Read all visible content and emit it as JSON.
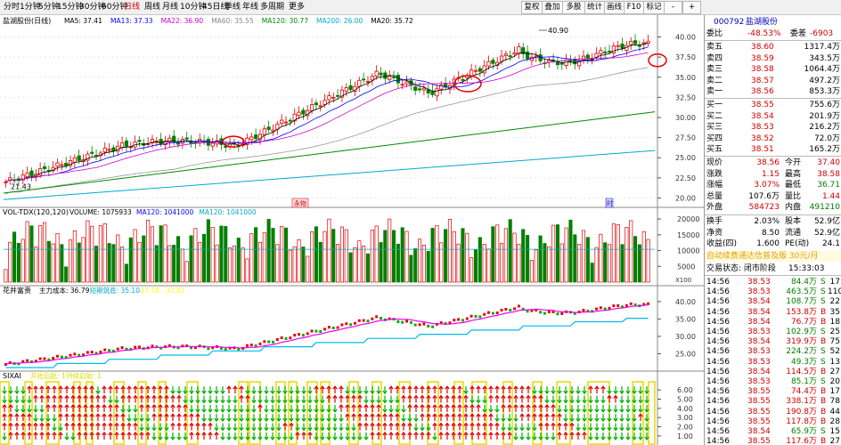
{
  "toolbar": {
    "periods": [
      "分时",
      "1分钟",
      "5分钟",
      "15分钟",
      "30分钟",
      "60分钟",
      "日线",
      "周线",
      "月线",
      "10分钟",
      "45日线",
      "季线",
      "年线",
      "多周期",
      "更多"
    ],
    "active_period": "日线",
    "buttons": [
      "复权",
      "叠加",
      "多股",
      "统计",
      "画线",
      "F10",
      "标记",
      "-",
      "+"
    ]
  },
  "main_panel": {
    "title": "盐湖股份(日线)",
    "ma_labels": [
      {
        "text": "MA5: 37.41",
        "color": "#000000"
      },
      {
        "text": "MA13: 37.33",
        "color": "#0000ff"
      },
      {
        "text": "MA22: 36.90",
        "color": "#cc00cc"
      },
      {
        "text": "MA60: 35.55",
        "color": "#888888"
      },
      {
        "text": "MA120: 30.77",
        "color": "#008800"
      },
      {
        "text": "MA200: 26.00",
        "color": "#00aacc"
      },
      {
        "text": "MA20: 35.72",
        "color": "#000000"
      }
    ],
    "y_axis": [
      "40.00",
      "37.50",
      "35.00",
      "32.50",
      "30.00",
      "27.50",
      "25.00",
      "22.50",
      "20.00"
    ],
    "high_label": "40.90",
    "low_label": "21.43",
    "flag_left": "永物",
    "flag_right": "时"
  },
  "volume_panel": {
    "title": "VOL-TDX(120,120)",
    "labels": [
      {
        "text": "VOLUME: 1075933",
        "color": "#000000"
      },
      {
        "text": "MA120: 1041000",
        "color": "#0000ff"
      },
      {
        "text": "MA120: 1041000",
        "color": "#00aacc"
      }
    ],
    "y_axis": [
      "20000",
      "15000",
      "10000",
      "5000"
    ],
    "unit": "X100"
  },
  "indicator_panel": {
    "title": "花井富贵",
    "labels": [
      {
        "text": "主力成本: 36.79",
        "color": "#000000"
      },
      {
        "text": "短期筑底: 35.10",
        "color": "#00aacc"
      },
      {
        "text": "37.78 : 37.02",
        "color": "#ffff00"
      }
    ],
    "y_axis": [
      "40.00",
      "35.00",
      "30.00",
      "25.00"
    ]
  },
  "signal_panel": {
    "title": "SIXAI",
    "labels": [
      {
        "text": "开始启航: 1",
        "color": "#dddd00"
      },
      {
        "text": "持续启航: 1",
        "color": "#dddd00"
      }
    ],
    "y_axis": [
      "6.00",
      "5.00",
      "4.00",
      "3.00",
      "2.00",
      "1.00"
    ]
  },
  "quote": {
    "code": "000792",
    "name": "盐湖股份",
    "weibi_label": "委比",
    "weibi_value": "-48.53%",
    "weicha_label": "委差",
    "weicha_value": "-6903",
    "asks": [
      {
        "label": "卖五",
        "price": "38.60",
        "vol": "1317.4万"
      },
      {
        "label": "卖四",
        "price": "38.59",
        "vol": "343.5万"
      },
      {
        "label": "卖三",
        "price": "38.58",
        "vol": "1064.4万"
      },
      {
        "label": "卖二",
        "price": "38.57",
        "vol": "497.2万"
      },
      {
        "label": "卖一",
        "price": "38.56",
        "vol": "853.3万"
      }
    ],
    "bids": [
      {
        "label": "买一",
        "price": "38.55",
        "vol": "755.6万"
      },
      {
        "label": "买二",
        "price": "38.54",
        "vol": "201.9万"
      },
      {
        "label": "买三",
        "price": "38.53",
        "vol": "216.2万"
      },
      {
        "label": "买四",
        "price": "38.52",
        "vol": "72.0万"
      },
      {
        "label": "买五",
        "price": "38.51",
        "vol": "165.2万"
      }
    ],
    "stats": [
      {
        "l1": "现价",
        "v1": "38.56",
        "c1": "red",
        "l2": "今开",
        "v2": "37.40",
        "c2": "red"
      },
      {
        "l1": "涨跌",
        "v1": "1.15",
        "c1": "red",
        "l2": "最高",
        "v2": "38.58",
        "c2": "red"
      },
      {
        "l1": "涨幅",
        "v1": "3.07%",
        "c1": "red",
        "l2": "最低",
        "v2": "36.71",
        "c2": "green"
      },
      {
        "l1": "总量",
        "v1": "107.6万",
        "c1": "black",
        "l2": "量比",
        "v2": "1.44",
        "c2": "red"
      },
      {
        "l1": "外盘",
        "v1": "584723",
        "c1": "red",
        "l2": "内盘",
        "v2": "491210",
        "c2": "green"
      }
    ],
    "stats2": [
      {
        "l1": "换手",
        "v1": "2.03%",
        "l2": "股本",
        "v2": "52.9亿"
      },
      {
        "l1": "净资",
        "v1": "8.50",
        "l2": "流通",
        "v2": "52.9亿"
      },
      {
        "l1": "收益(四)",
        "v1": "1.600",
        "l2": "PE(动)",
        "v2": "24.1"
      }
    ],
    "promo": "自动续费通达信普及版 30元/月",
    "trade_status_label": "交易状态: 闭市阶段",
    "trade_time": "15:33:03",
    "ticks": [
      {
        "t": "14:56",
        "p": "38.53",
        "v": "84.4万",
        "d": "S",
        "n": "17"
      },
      {
        "t": "14:56",
        "p": "38.53",
        "v": "463.5万",
        "d": "S",
        "n": "110"
      },
      {
        "t": "14:56",
        "p": "38.54",
        "v": "108.7万",
        "d": "S",
        "n": "22"
      },
      {
        "t": "14:56",
        "p": "38.54",
        "v": "153.8万",
        "d": "B",
        "n": "35"
      },
      {
        "t": "14:56",
        "p": "38.54",
        "v": "76.7万",
        "d": "B",
        "n": "18"
      },
      {
        "t": "14:56",
        "p": "38.53",
        "v": "102.9万",
        "d": "S",
        "n": "25"
      },
      {
        "t": "14:56",
        "p": "38.54",
        "v": "319.9万",
        "d": "B",
        "n": "75"
      },
      {
        "t": "14:56",
        "p": "38.53",
        "v": "224.2万",
        "d": "S",
        "n": "52"
      },
      {
        "t": "14:56",
        "p": "38.53",
        "v": "49.3万",
        "d": "S",
        "n": "13"
      },
      {
        "t": "14:56",
        "p": "38.54",
        "v": "114.5万",
        "d": "B",
        "n": "27"
      },
      {
        "t": "14:56",
        "p": "38.53",
        "v": "85.1万",
        "d": "S",
        "n": "20"
      },
      {
        "t": "14:56",
        "p": "38.55",
        "v": "74.4万",
        "d": "B",
        "n": "17"
      },
      {
        "t": "14:56",
        "p": "38.55",
        "v": "338.1万",
        "d": "B",
        "n": "78"
      },
      {
        "t": "14:56",
        "p": "38.55",
        "v": "190.8万",
        "d": "B",
        "n": "44"
      },
      {
        "t": "14:56",
        "p": "38.55",
        "v": "117.8万",
        "d": "B",
        "n": "28"
      },
      {
        "t": "14:56",
        "p": "38.54",
        "v": "65.9万",
        "d": "S",
        "n": "15"
      },
      {
        "t": "14:56",
        "p": "38.55",
        "v": "117.6万",
        "d": "B",
        "n": "27"
      }
    ]
  }
}
